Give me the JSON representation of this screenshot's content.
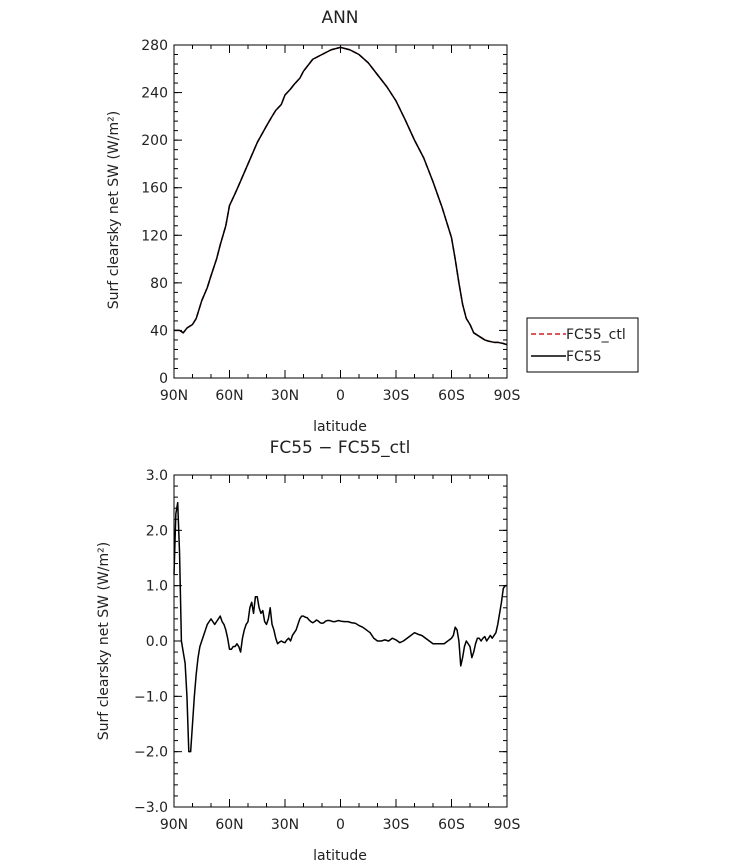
{
  "chart_data": [
    {
      "type": "line",
      "title": "ANN",
      "xlabel": "latitude",
      "ylabel": "Surf clearsky net SW (W/m²)",
      "xlim": [
        90,
        -90
      ],
      "ylim": [
        0,
        280
      ],
      "x_ticks": [
        90,
        60,
        30,
        0,
        -30,
        -60,
        -90
      ],
      "x_tick_labels": [
        "90N",
        "60N",
        "30N",
        "0",
        "30S",
        "60S",
        "90S"
      ],
      "y_ticks": [
        0,
        40,
        80,
        120,
        160,
        200,
        240,
        280
      ],
      "y_tick_labels": [
        "0",
        "40",
        "80",
        "120",
        "160",
        "200",
        "240",
        "280"
      ],
      "legend": {
        "placement": "right-outside",
        "entries": [
          "FC55_ctl",
          "FC55"
        ]
      },
      "series": [
        {
          "name": "FC55_ctl",
          "color": "#cc2222",
          "dash": "dashed",
          "x": [
            90,
            87,
            85,
            83,
            80,
            78,
            75,
            72,
            70,
            67,
            65,
            62,
            60,
            57,
            55,
            50,
            45,
            40,
            37,
            35,
            32,
            30,
            27,
            25,
            22,
            20,
            15,
            10,
            5,
            0,
            -5,
            -10,
            -15,
            -20,
            -25,
            -30,
            -35,
            -40,
            -45,
            -50,
            -55,
            -60,
            -62,
            -64,
            -66,
            -68,
            -70,
            -72,
            -74,
            -76,
            -78,
            -80,
            -83,
            -85,
            -88,
            -90
          ],
          "y": [
            40,
            40,
            38,
            42,
            45,
            50,
            65,
            76,
            86,
            100,
            112,
            128,
            145,
            155,
            162,
            180,
            198,
            212,
            220,
            225,
            230,
            238,
            243,
            247,
            252,
            258,
            268,
            272,
            276,
            278,
            276,
            272,
            265,
            255,
            245,
            233,
            217,
            200,
            185,
            165,
            143,
            118,
            100,
            80,
            62,
            50,
            45,
            38,
            36,
            34,
            32,
            31,
            30,
            30,
            29,
            28
          ]
        },
        {
          "name": "FC55",
          "color": "#000000",
          "dash": "solid",
          "x": [
            90,
            87,
            85,
            83,
            80,
            78,
            75,
            72,
            70,
            67,
            65,
            62,
            60,
            57,
            55,
            50,
            45,
            40,
            37,
            35,
            32,
            30,
            27,
            25,
            22,
            20,
            15,
            10,
            5,
            0,
            -5,
            -10,
            -15,
            -20,
            -25,
            -30,
            -35,
            -40,
            -45,
            -50,
            -55,
            -60,
            -62,
            -64,
            -66,
            -68,
            -70,
            -72,
            -74,
            -76,
            -78,
            -80,
            -83,
            -85,
            -88,
            -90
          ],
          "y": [
            40,
            40,
            38,
            42,
            45,
            50,
            65,
            76,
            86,
            100,
            112,
            128,
            145,
            155,
            162,
            180,
            198,
            212,
            220,
            225,
            230,
            238,
            243,
            247,
            252,
            258,
            268,
            272,
            276,
            278,
            276,
            272,
            265,
            255,
            245,
            233,
            217,
            200,
            185,
            165,
            143,
            118,
            100,
            80,
            62,
            50,
            45,
            38,
            36,
            34,
            32,
            31,
            30,
            30,
            29,
            28
          ]
        }
      ]
    },
    {
      "type": "line",
      "title": "FC55 − FC55_ctl",
      "xlabel": "latitude",
      "ylabel": "Surf clearsky net SW (W/m²)",
      "xlim": [
        90,
        -90
      ],
      "ylim": [
        -3.0,
        3.0
      ],
      "x_ticks": [
        90,
        60,
        30,
        0,
        -30,
        -60,
        -90
      ],
      "x_tick_labels": [
        "90N",
        "60N",
        "30N",
        "0",
        "30S",
        "60S",
        "90S"
      ],
      "y_ticks": [
        -3.0,
        -2.0,
        -1.0,
        0.0,
        1.0,
        2.0,
        3.0
      ],
      "y_tick_labels": [
        "−3.0",
        "−2.0",
        "−1.0",
        "0.0",
        "1.0",
        "2.0",
        "3.0"
      ],
      "series": [
        {
          "name": "FC55",
          "color": "#000000",
          "dash": "solid",
          "x": [
            90,
            89,
            88,
            87,
            86,
            85,
            84,
            83,
            82,
            81,
            80,
            79,
            78,
            77,
            76,
            75,
            74,
            73,
            72,
            71,
            70,
            69,
            68,
            67,
            66,
            65,
            64,
            63,
            62,
            61,
            60,
            59,
            58,
            57,
            56,
            55,
            54,
            53,
            52,
            51,
            50,
            49,
            48,
            47,
            46,
            45,
            44,
            43,
            42,
            41,
            40,
            39,
            38,
            37,
            36,
            35,
            34,
            33,
            32,
            31,
            30,
            29,
            28,
            27,
            26,
            25,
            24,
            23,
            22,
            21,
            20,
            19,
            18,
            17,
            16,
            15,
            14,
            13,
            12,
            11,
            10,
            9,
            8,
            7,
            6,
            5,
            4,
            3,
            2,
            1,
            0,
            -2,
            -4,
            -6,
            -8,
            -10,
            -12,
            -14,
            -16,
            -18,
            -20,
            -22,
            -24,
            -26,
            -28,
            -30,
            -32,
            -34,
            -36,
            -38,
            -40,
            -42,
            -44,
            -46,
            -48,
            -50,
            -52,
            -54,
            -56,
            -58,
            -60,
            -61,
            -62,
            -63,
            -64,
            -65,
            -66,
            -67,
            -68,
            -69,
            -70,
            -71,
            -72,
            -73,
            -74,
            -75,
            -76,
            -77,
            -78,
            -79,
            -80,
            -81,
            -82,
            -83,
            -84,
            -85,
            -86,
            -87,
            -88,
            -89,
            -90
          ],
          "y": [
            1.2,
            2.3,
            2.5,
            1.6,
            0.0,
            -0.2,
            -0.4,
            -1.0,
            -2.0,
            -2.0,
            -1.5,
            -1.0,
            -0.6,
            -0.3,
            -0.1,
            0.0,
            0.1,
            0.2,
            0.3,
            0.35,
            0.4,
            0.35,
            0.3,
            0.35,
            0.4,
            0.45,
            0.35,
            0.3,
            0.2,
            0.05,
            -0.15,
            -0.15,
            -0.1,
            -0.1,
            -0.05,
            -0.1,
            -0.2,
            0.05,
            0.2,
            0.3,
            0.35,
            0.6,
            0.7,
            0.5,
            0.8,
            0.8,
            0.6,
            0.5,
            0.55,
            0.35,
            0.3,
            0.4,
            0.6,
            0.3,
            0.2,
            0.05,
            -0.05,
            -0.02,
            0.0,
            -0.02,
            -0.03,
            0.02,
            0.05,
            0.0,
            0.1,
            0.15,
            0.2,
            0.3,
            0.4,
            0.45,
            0.45,
            0.43,
            0.42,
            0.38,
            0.35,
            0.33,
            0.35,
            0.38,
            0.36,
            0.33,
            0.32,
            0.33,
            0.36,
            0.37,
            0.37,
            0.36,
            0.35,
            0.35,
            0.36,
            0.37,
            0.36,
            0.35,
            0.35,
            0.33,
            0.32,
            0.28,
            0.25,
            0.2,
            0.15,
            0.05,
            0.0,
            0.0,
            0.02,
            0.0,
            0.05,
            0.02,
            -0.03,
            0.0,
            0.05,
            0.1,
            0.15,
            0.12,
            0.1,
            0.05,
            0.0,
            -0.05,
            -0.05,
            -0.05,
            -0.05,
            0.0,
            0.05,
            0.1,
            0.25,
            0.2,
            0.0,
            -0.45,
            -0.3,
            -0.1,
            0.0,
            -0.05,
            -0.1,
            -0.3,
            -0.2,
            -0.05,
            0.05,
            0.05,
            0.0,
            0.05,
            0.08,
            0.0,
            0.05,
            0.1,
            0.05,
            0.1,
            0.15,
            0.3,
            0.5,
            0.7,
            0.95,
            1.0,
            1.0
          ]
        }
      ]
    }
  ]
}
